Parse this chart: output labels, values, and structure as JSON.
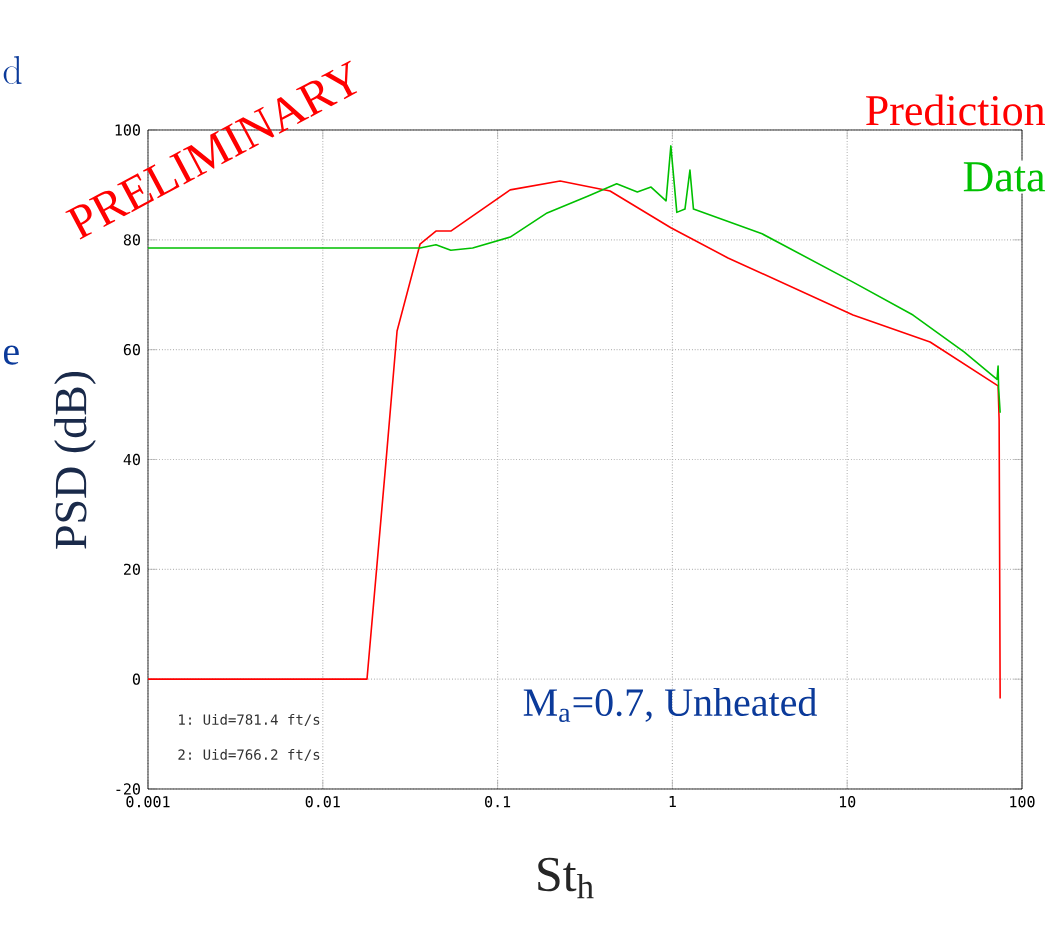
{
  "chart_data": {
    "type": "line",
    "xlabel": "St$_{h}$",
    "ylabel": "PSD (dB)",
    "annotations": [
      "PRELIMINARY",
      "M$_{a}$=0.7, Unheated",
      "1: Uid=781.4 ft/s",
      "2: Uid=766.2 ft/s",
      "d",
      "e"
    ],
    "series": [
      {
        "name": "Prediction",
        "color": "#ff0000",
        "x": [
          0.001,
          0.0179,
          0.023,
          0.0266,
          0.036,
          0.0444,
          0.054,
          0.118,
          0.228,
          0.44,
          0.98,
          2.08,
          10.8,
          29.8,
          73,
          74,
          75
        ],
        "values": [
          0,
          0,
          39.7,
          63.4,
          79.2,
          81.6,
          81.6,
          89.1,
          90.7,
          88.9,
          82.2,
          76.7,
          66.3,
          61.4,
          53.4,
          47.2,
          -3.5
        ]
      },
      {
        "name": "Data",
        "color": "#00c000",
        "x": [
          0.001,
          0.036,
          0.0444,
          0.054,
          0.072,
          0.118,
          0.192,
          0.33,
          0.48,
          0.63,
          0.755,
          0.92,
          0.98,
          1.06,
          1.18,
          1.26,
          1.32,
          3.26,
          10.8,
          23.8,
          46.6,
          72,
          73,
          73.5,
          75
        ],
        "values": [
          78.5,
          78.5,
          79.1,
          78.1,
          78.5,
          80.5,
          84.9,
          88,
          90.2,
          88.7,
          89.6,
          87.1,
          97.1,
          85.0,
          85.6,
          92.7,
          85.6,
          81.1,
          72.3,
          66.3,
          59.6,
          54.6,
          57,
          53,
          48.5
        ]
      }
    ],
    "xlim": [
      0.001,
      100
    ],
    "ylim": [
      -20,
      100
    ],
    "xticks": [
      0.001,
      0.01,
      0.1,
      1,
      10,
      100
    ],
    "yticks": [
      -20,
      0,
      20,
      40,
      60,
      80,
      100
    ],
    "log": "x",
    "grid": true,
    "legend": "top right"
  }
}
